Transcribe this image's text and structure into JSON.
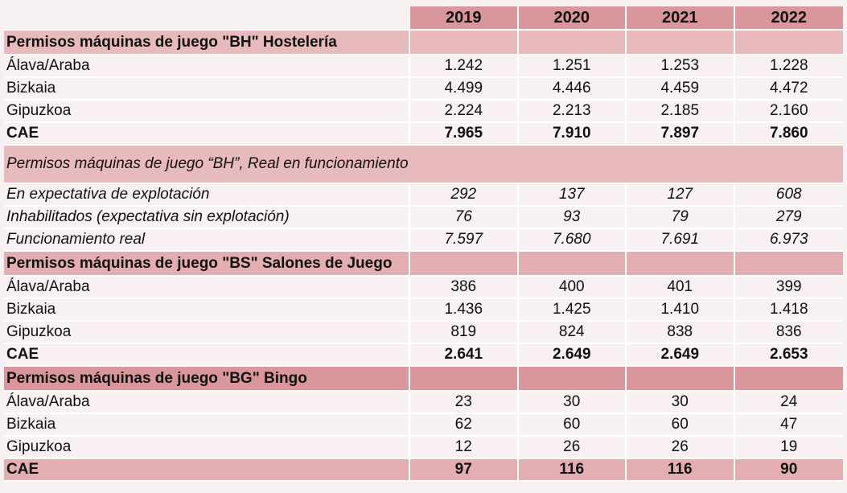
{
  "years": [
    "2019",
    "2020",
    "2021",
    "2022"
  ],
  "sections": [
    {
      "title": "Permisos máquinas de juego \"BH\" Hostelería",
      "rows": [
        {
          "label": "Álava/Araba",
          "values": [
            "1.242",
            "1.251",
            "1.253",
            "1.228"
          ]
        },
        {
          "label": "Bizkaia",
          "values": [
            "4.499",
            "4.446",
            "4.459",
            "4.472"
          ]
        },
        {
          "label": "Gipuzkoa",
          "values": [
            "2.224",
            "2.213",
            "2.185",
            "2.160"
          ]
        }
      ],
      "total": {
        "label": "CAE",
        "values": [
          "7.965",
          "7.910",
          "7.897",
          "7.860"
        ]
      }
    },
    {
      "title": "Permisos máquinas de juego “BH”, Real en funcionamiento",
      "rows": [
        {
          "label": "En expectativa de explotación",
          "values": [
            "292",
            "137",
            "127",
            "608"
          ]
        },
        {
          "label": "Inhabilitados (expectativa sin explotación)",
          "values": [
            "76",
            "93",
            "79",
            "279"
          ]
        },
        {
          "label": "Funcionamiento real",
          "values": [
            "7.597",
            "7.680",
            "7.691",
            "6.973"
          ]
        }
      ]
    },
    {
      "title": "Permisos máquinas de juego \"BS\" Salones de Juego",
      "rows": [
        {
          "label": "Álava/Araba",
          "values": [
            "386",
            "400",
            "401",
            "399"
          ]
        },
        {
          "label": "Bizkaia",
          "values": [
            "1.436",
            "1.425",
            "1.410",
            "1.418"
          ]
        },
        {
          "label": "Gipuzkoa",
          "values": [
            "819",
            "824",
            "838",
            "836"
          ]
        }
      ],
      "total": {
        "label": "CAE",
        "values": [
          "2.641",
          "2.649",
          "2.649",
          "2.653"
        ]
      }
    },
    {
      "title": "Permisos máquinas de juego \"BG\" Bingo",
      "rows": [
        {
          "label": "Álava/Araba",
          "values": [
            "23",
            "30",
            "30",
            "24"
          ]
        },
        {
          "label": "Bizkaia",
          "values": [
            "62",
            "60",
            "60",
            "47"
          ]
        },
        {
          "label": "Gipuzkoa",
          "values": [
            "12",
            "26",
            "26",
            "19"
          ]
        }
      ],
      "total": {
        "label": "CAE",
        "values": [
          "97",
          "116",
          "116",
          "90"
        ]
      }
    }
  ]
}
